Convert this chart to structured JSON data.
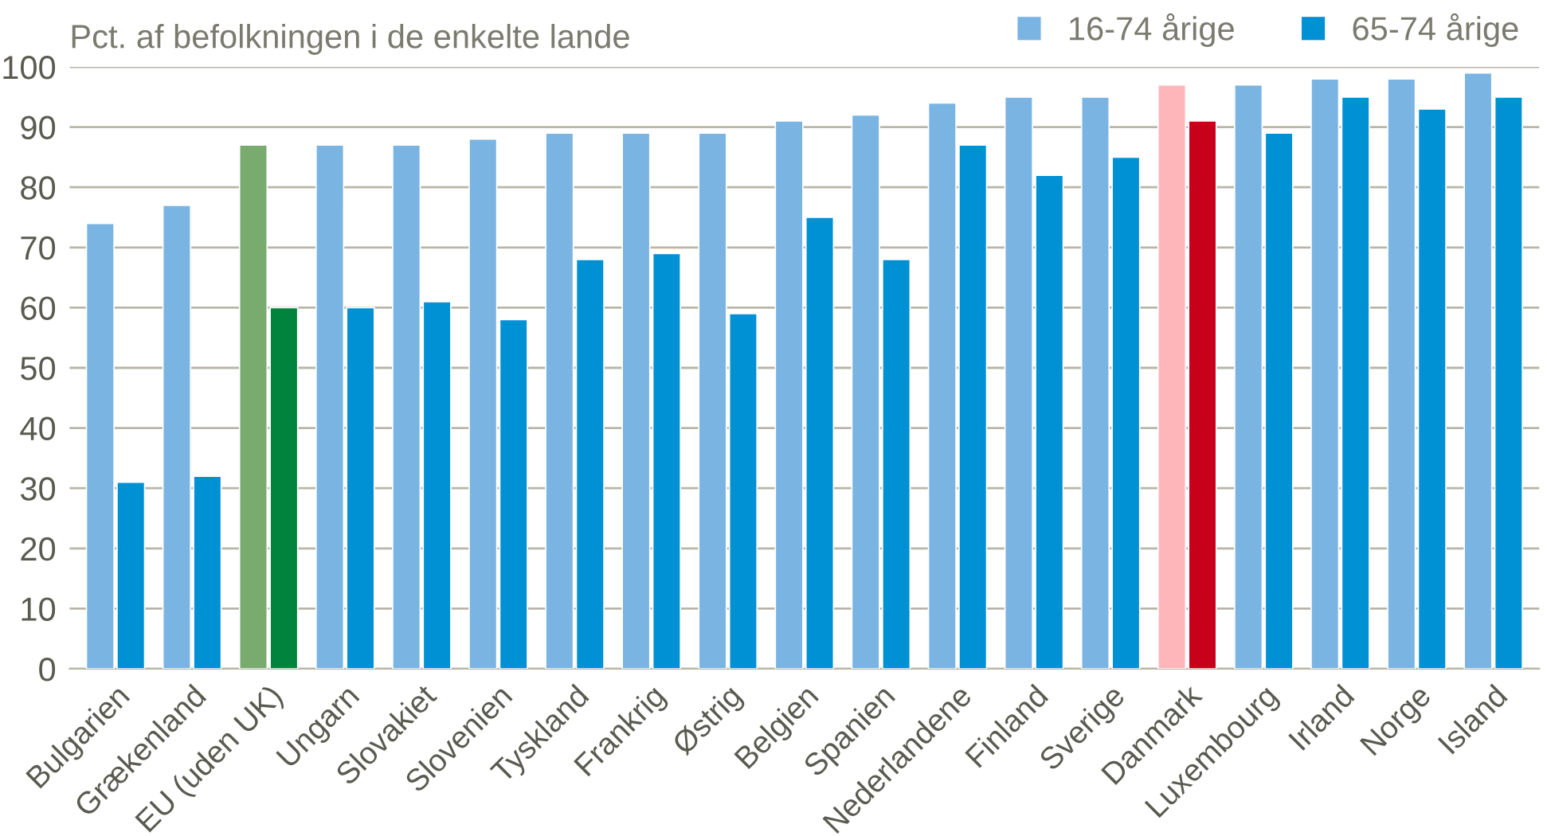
{
  "chart_data": {
    "type": "bar",
    "ylabel": "Pct. af befolkningen i de enkelte lande",
    "categories": [
      "Bulgarien",
      "Grækenland",
      "EU (uden UK)",
      "Ungarn",
      "Slovakiet",
      "Slovenien",
      "Tyskland",
      "Frankrig",
      "Østrig",
      "Belgien",
      "Spanien",
      "Nederlandene",
      "Finland",
      "Sverige",
      "Danmark",
      "Luxembourg",
      "Irland",
      "Norge",
      "Island"
    ],
    "series": [
      {
        "name": "16-74 årige",
        "color": "#7ab4e3",
        "colors": [
          "#7ab4e3",
          "#7ab4e3",
          "#79ab6f",
          "#7ab4e3",
          "#7ab4e3",
          "#7ab4e3",
          "#7ab4e3",
          "#7ab4e3",
          "#7ab4e3",
          "#7ab4e3",
          "#7ab4e3",
          "#7ab4e3",
          "#7ab4e3",
          "#7ab4e3",
          "#ffb6bb",
          "#7ab4e3",
          "#7ab4e3",
          "#7ab4e3",
          "#7ab4e3"
        ],
        "values": [
          74,
          77,
          87,
          87,
          87,
          88,
          89,
          89,
          89,
          91,
          92,
          94,
          95,
          95,
          97,
          97,
          98,
          98,
          99
        ]
      },
      {
        "name": "65-74 årige",
        "color": "#0090d4",
        "colors": [
          "#0090d4",
          "#0090d4",
          "#00843d",
          "#0090d4",
          "#0090d4",
          "#0090d4",
          "#0090d4",
          "#0090d4",
          "#0090d4",
          "#0090d4",
          "#0090d4",
          "#0090d4",
          "#0090d4",
          "#0090d4",
          "#c8001a",
          "#0090d4",
          "#0090d4",
          "#0090d4",
          "#0090d4"
        ],
        "values": [
          31,
          32,
          60,
          60,
          61,
          58,
          68,
          69,
          59,
          75,
          68,
          87,
          82,
          85,
          91,
          89,
          95,
          93,
          95
        ]
      }
    ],
    "ylim": [
      0,
      100
    ],
    "yticks": [
      0,
      10,
      20,
      30,
      40,
      50,
      60,
      70,
      80,
      90,
      100
    ],
    "grid": "y",
    "legend": "top right"
  }
}
